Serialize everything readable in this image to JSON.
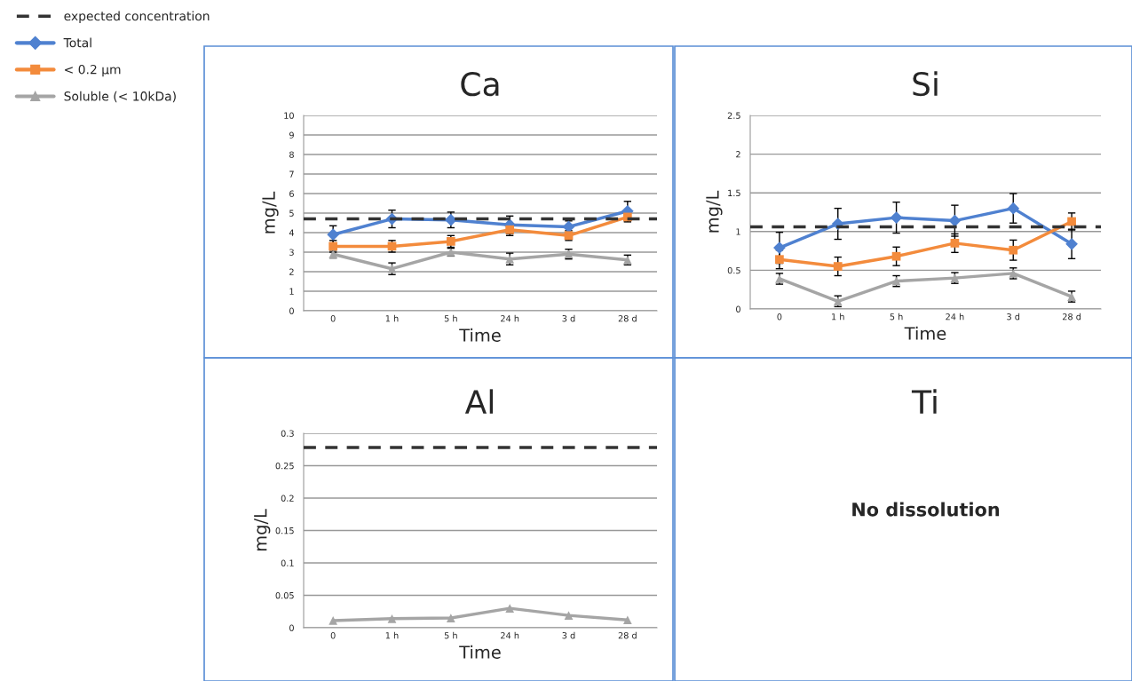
{
  "chart_data": [
    {
      "type": "line",
      "title": "Ca",
      "xlabel": "Time",
      "ylabel": "mg/L",
      "categories": [
        "0",
        "1 h",
        "5 h",
        "24 h",
        "3 d",
        "28 d"
      ],
      "ylim": [
        0,
        10
      ],
      "yticks": [
        0,
        1,
        2,
        3,
        4,
        5,
        6,
        7,
        8,
        9,
        10
      ],
      "grid": "y",
      "legend": "left",
      "series": [
        {
          "name": "Total",
          "color": "#4f81d0",
          "marker": "diamond",
          "values": [
            3.9,
            4.7,
            4.65,
            4.4,
            4.3,
            5.1
          ],
          "errors": [
            0.45,
            0.45,
            0.4,
            0.45,
            0.3,
            0.5
          ]
        },
        {
          "name": "< 0.2 µm",
          "color": "#f38b3c",
          "marker": "square",
          "values": [
            3.3,
            3.3,
            3.55,
            4.15,
            3.85,
            4.8
          ],
          "errors": [
            0.3,
            0.3,
            0.3,
            0.3,
            0.25,
            0.25
          ]
        },
        {
          "name": "Soluble (< 10kDa)",
          "color": "#a5a5a5",
          "marker": "triangle",
          "values": [
            2.9,
            2.15,
            3.0,
            2.65,
            2.9,
            2.6
          ],
          "errors": [
            0.2,
            0.3,
            0.2,
            0.3,
            0.25,
            0.25
          ]
        }
      ],
      "ref_lines": [
        {
          "axis": "y",
          "value": 4.7,
          "label": "expected concentration",
          "color": "#333333",
          "line_style": "dashed"
        }
      ]
    },
    {
      "type": "line",
      "title": "Si",
      "xlabel": "Time",
      "ylabel": "mg/L",
      "categories": [
        "0",
        "1 h",
        "5 h",
        "24 h",
        "3 d",
        "28 d"
      ],
      "ylim": [
        0,
        2.5
      ],
      "yticks": [
        0,
        0.5,
        1,
        1.5,
        2,
        2.5
      ],
      "grid": "y",
      "series": [
        {
          "color": "#4f81d0",
          "marker": "diamond",
          "values": [
            0.79,
            1.1,
            1.18,
            1.14,
            1.3,
            0.84
          ],
          "errors": [
            0.2,
            0.2,
            0.2,
            0.2,
            0.19,
            0.19
          ]
        },
        {
          "color": "#f38b3c",
          "marker": "square",
          "values": [
            0.64,
            0.55,
            0.68,
            0.85,
            0.76,
            1.13
          ],
          "errors": [
            0.12,
            0.12,
            0.12,
            0.12,
            0.13,
            0.11
          ]
        },
        {
          "color": "#a5a5a5",
          "marker": "triangle",
          "values": [
            0.39,
            0.1,
            0.36,
            0.4,
            0.46,
            0.16
          ],
          "errors": [
            0.07,
            0.07,
            0.07,
            0.07,
            0.07,
            0.07
          ]
        }
      ],
      "ref_lines": [
        {
          "axis": "y",
          "value": 1.06,
          "color": "#333333",
          "line_style": "dashed"
        }
      ]
    },
    {
      "type": "line",
      "title": "Al",
      "xlabel": "Time",
      "ylabel": "mg/L",
      "categories": [
        "0",
        "1 h",
        "5 h",
        "24 h",
        "3 d",
        "28 d"
      ],
      "ylim": [
        0,
        0.3
      ],
      "yticks": [
        0,
        0.05,
        0.1,
        0.15,
        0.2,
        0.25,
        0.3
      ],
      "grid": "y",
      "series": [
        {
          "color": "#a5a5a5",
          "marker": "triangle",
          "values": [
            0.011,
            0.014,
            0.015,
            0.03,
            0.019,
            0.012
          ]
        }
      ],
      "ref_lines": [
        {
          "axis": "y",
          "value": 0.278,
          "color": "#333333",
          "line_style": "dashed"
        }
      ]
    },
    {
      "type": "other",
      "title": "Ti",
      "annotations": [
        "No dissolution"
      ]
    }
  ]
}
